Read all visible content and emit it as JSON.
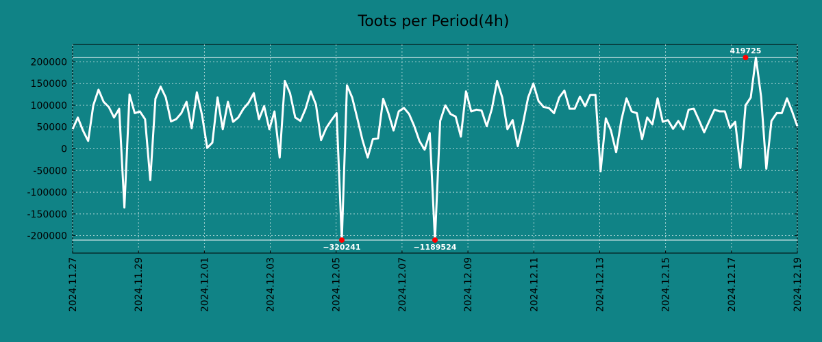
{
  "chart_data": {
    "type": "line",
    "title": "Toots per Period(4h)",
    "xlabel": "",
    "ylabel": "",
    "ylim": [
      -240000,
      240000
    ],
    "y_ticks": [
      200000,
      150000,
      100000,
      50000,
      0,
      -50000,
      -100000,
      -150000,
      -200000
    ],
    "y_tick_labels": [
      "200000",
      "150000",
      "100000",
      "50000",
      "0",
      "-50000",
      "-100000",
      "-150000",
      "-200000"
    ],
    "x_tick_labels": [
      "2024.11.27",
      "2024.11.29",
      "2024.12.01",
      "2024.12.03",
      "2024.12.05",
      "2024.12.07",
      "2024.12.09",
      "2024.12.11",
      "2024.12.13",
      "2024.12.15",
      "2024.12.17",
      "2024.12.19"
    ],
    "x_tick_index": [
      0,
      12,
      24,
      36,
      48,
      60,
      72,
      84,
      96,
      108,
      120,
      132
    ],
    "clip_lines": [
      210000,
      -210000
    ],
    "line_color": "#ffffff",
    "marker_color": "#ff0000",
    "grid": true,
    "series": [
      {
        "name": "toots",
        "values": [
          45000,
          72000,
          42000,
          18000,
          100000,
          136000,
          108000,
          96000,
          72000,
          92000,
          -135000,
          125000,
          82000,
          86000,
          68000,
          -72000,
          115000,
          143000,
          118000,
          63000,
          68000,
          82000,
          108000,
          47000,
          130000,
          78000,
          2000,
          14000,
          118000,
          45000,
          108000,
          62000,
          72000,
          92000,
          106000,
          128000,
          68000,
          98000,
          45000,
          86000,
          -20000,
          156000,
          128000,
          72000,
          64000,
          92000,
          132000,
          102000,
          20000,
          48000,
          66000,
          82000,
          -210000,
          146000,
          118000,
          70000,
          20000,
          -20000,
          22000,
          24000,
          115000,
          82000,
          42000,
          86000,
          94000,
          80000,
          52000,
          18000,
          -2000,
          36000,
          -210000,
          64000,
          100000,
          80000,
          74000,
          28000,
          132000,
          86000,
          90000,
          88000,
          52000,
          92000,
          156000,
          118000,
          45000,
          66000,
          6000,
          58000,
          118000,
          150000,
          110000,
          96000,
          94000,
          82000,
          118000,
          134000,
          92000,
          92000,
          120000,
          98000,
          124000,
          124000,
          -52000,
          70000,
          42000,
          -8000,
          66000,
          116000,
          86000,
          82000,
          22000,
          72000,
          56000,
          116000,
          62000,
          66000,
          46000,
          64000,
          45000,
          90000,
          92000,
          66000,
          38000,
          64000,
          90000,
          86000,
          86000,
          48000,
          62000,
          -44000,
          100000,
          118000,
          210000,
          120000,
          -46000,
          64000,
          82000,
          82000,
          116000,
          86000,
          52000
        ]
      }
    ],
    "annotations": [
      {
        "index": 52,
        "value": -210000,
        "label": "−320241",
        "position": "below"
      },
      {
        "index": 70,
        "value": -210000,
        "label": "−1189524",
        "position": "below"
      },
      {
        "index": 130,
        "value": 210000,
        "label": "419725",
        "position": "above"
      }
    ]
  }
}
